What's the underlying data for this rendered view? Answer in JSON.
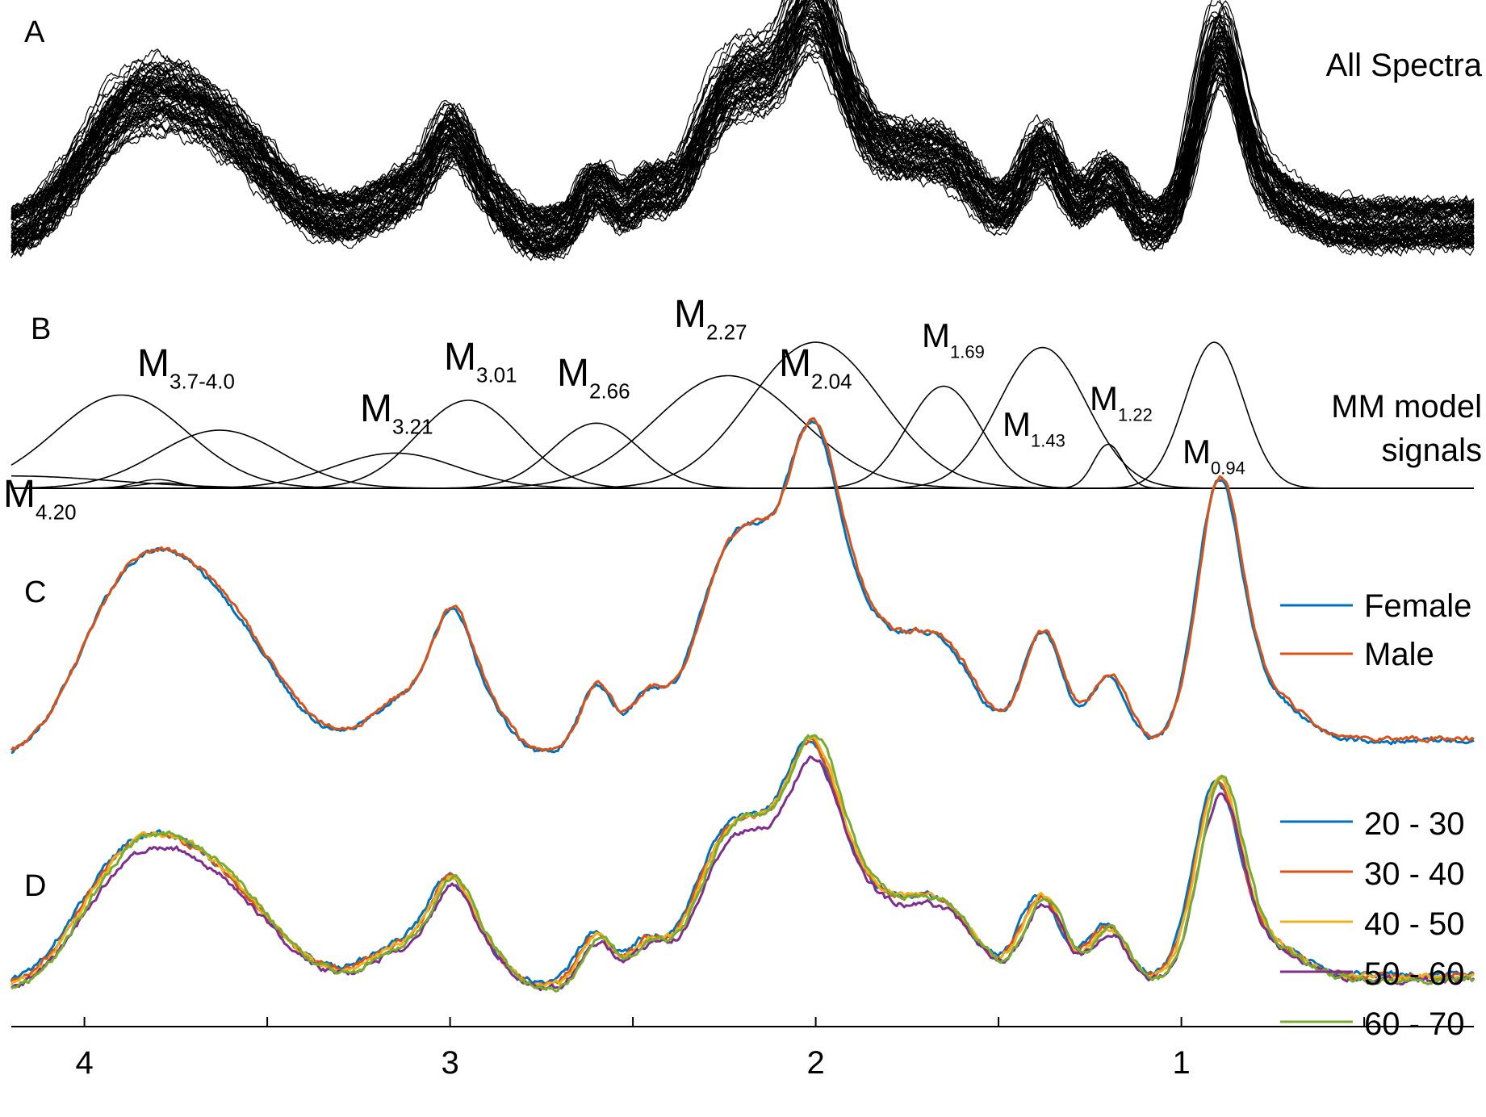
{
  "panels": {
    "A": {
      "letter": "A",
      "label": "All Spectra"
    },
    "B": {
      "letter": "B",
      "label_line1": "MM model",
      "label_line2": "signals"
    },
    "C": {
      "letter": "C"
    },
    "D": {
      "letter": "D"
    }
  },
  "colors": {
    "female": "#0072BD",
    "male": "#D95319",
    "age_20_30": "#0072BD",
    "age_30_40": "#D95319",
    "age_40_50": "#EDB120",
    "age_50_60": "#7E2F8E",
    "age_60_70": "#77AC30",
    "ink": "#000000"
  },
  "chart_data": [
    {
      "type": "line",
      "panel": "A",
      "description_label": "All Spectra",
      "x_unit": "ppm",
      "xlim": [
        4.2,
        0.2
      ],
      "x_reversed": true,
      "peaks_ppm": [
        3.9,
        2.99,
        2.6,
        2.27,
        2.02,
        1.65,
        1.38,
        1.22,
        0.9
      ],
      "grid": false
    },
    {
      "type": "line",
      "panel": "B",
      "description_label": "MM model signals",
      "x_unit": "ppm",
      "xlim": [
        4.2,
        0.2
      ],
      "x_reversed": true,
      "series": [
        {
          "name": "M_{4.20}",
          "main": "M",
          "sub": "4.20",
          "center": 4.2,
          "amplitude": 0.07,
          "width": 0.28
        },
        {
          "name": "M_{3.7-4.0}",
          "main": "M",
          "sub": "3.7-4.0",
          "center": 3.9,
          "amplitude": 0.53,
          "width": 0.18
        },
        {
          "name": "M_{3.7-4.0}",
          "main": "",
          "sub": "",
          "center": 3.63,
          "amplitude": 0.33,
          "width": 0.17
        },
        {
          "name": "M_{3.21}",
          "main": "M",
          "sub": "3.21",
          "center": 3.15,
          "amplitude": 0.2,
          "width": 0.17
        },
        {
          "name": "M_{3.01}",
          "main": "M",
          "sub": "3.01",
          "center": 2.95,
          "amplitude": 0.5,
          "width": 0.14
        },
        {
          "name": "M_{2.66}",
          "main": "M",
          "sub": "2.66",
          "center": 2.6,
          "amplitude": 0.37,
          "width": 0.12
        },
        {
          "name": "M_{2.27}",
          "main": "M",
          "sub": "2.27",
          "center": 2.24,
          "amplitude": 0.64,
          "width": 0.2
        },
        {
          "name": "M_{2.04}",
          "main": "M",
          "sub": "2.04",
          "center": 2.0,
          "amplitude": 0.83,
          "width": 0.18
        },
        {
          "name": "M_{1.69}",
          "main": "M",
          "sub": "1.69",
          "center": 1.65,
          "amplitude": 0.58,
          "width": 0.1
        },
        {
          "name": "M_{1.43}",
          "main": "M",
          "sub": "1.43",
          "center": 1.38,
          "amplitude": 0.8,
          "width": 0.12
        },
        {
          "name": "M_{1.22}",
          "main": "M",
          "sub": "1.22",
          "center": 1.2,
          "amplitude": 0.25,
          "width": 0.04
        },
        {
          "name": "M_{0.94}",
          "main": "M",
          "sub": "0.94",
          "center": 0.91,
          "amplitude": 0.83,
          "width": 0.08
        }
      ],
      "grid": false
    },
    {
      "type": "line",
      "panel": "C",
      "x_unit": "ppm",
      "xlim": [
        4.2,
        0.2
      ],
      "x_reversed": true,
      "legend_position": "right",
      "series": [
        {
          "name": "Female",
          "color": "#0072BD"
        },
        {
          "name": "Male",
          "color": "#D95319"
        }
      ],
      "grid": false
    },
    {
      "type": "line",
      "panel": "D",
      "x_unit": "ppm",
      "xlim": [
        4.2,
        0.2
      ],
      "x_reversed": true,
      "legend_position": "top-right",
      "series": [
        {
          "name": "20 - 30",
          "color": "#0072BD"
        },
        {
          "name": "30 - 40",
          "color": "#D95319"
        },
        {
          "name": "40 - 50",
          "color": "#EDB120"
        },
        {
          "name": "50 - 60",
          "color": "#7E2F8E"
        },
        {
          "name": "60 - 70",
          "color": "#77AC30"
        }
      ],
      "grid": false
    },
    {
      "type": "axis",
      "panel": "x-axis",
      "x_unit": "ppm",
      "xlim": [
        4.2,
        0.2
      ],
      "x_reversed": true,
      "ticks": [
        4,
        3.5,
        3,
        2.5,
        2,
        1.5,
        1,
        0.5
      ],
      "tick_labels": [
        {
          "value": 4,
          "label": "4"
        },
        {
          "value": 3,
          "label": "3"
        },
        {
          "value": 2,
          "label": "2"
        },
        {
          "value": 1,
          "label": "1"
        }
      ]
    }
  ]
}
